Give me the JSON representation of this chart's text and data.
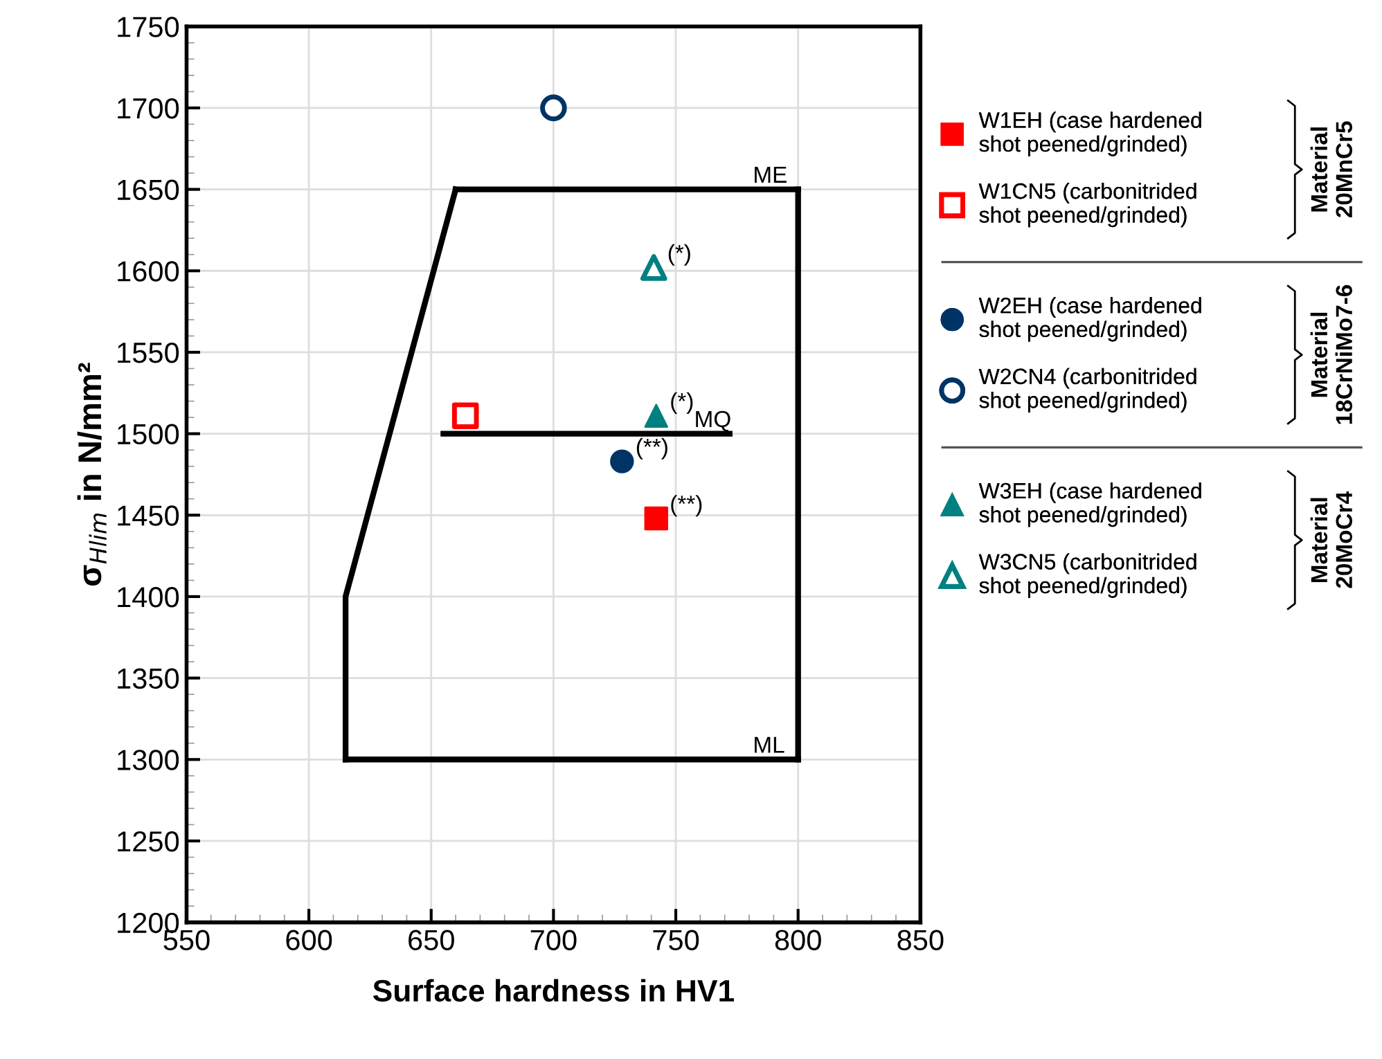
{
  "chart_data": {
    "type": "scatter",
    "xlabel": "Surface hardness in HV1",
    "ylabel": "σ$_{Hlim}$ in N/mm²",
    "xlim": [
      550,
      850
    ],
    "xticks": [
      550,
      600,
      650,
      700,
      750,
      800,
      850
    ],
    "ylim": [
      1200,
      1750
    ],
    "yticks": [
      1200,
      1250,
      1300,
      1350,
      1400,
      1450,
      1500,
      1550,
      1600,
      1650,
      1700,
      1750
    ],
    "grid": true,
    "legend": "right",
    "series": [
      {
        "name": "W1EH (case hardened\nshot peened/grinded)",
        "color": "#ff0000",
        "marker": "square",
        "x": [
          742
        ],
        "values": [
          1448
        ]
      },
      {
        "name": "W1CN5 (carbonitrided\nshot peened/grinded)",
        "color": "#ff0000",
        "marker": "square",
        "colors": [
          "#ffffff"
        ],
        "x": [
          664
        ],
        "values": [
          1511
        ]
      },
      {
        "name": "W2EH (case hardened\nshot peened/grinded)",
        "color": "#003366",
        "marker": "circle",
        "x": [
          728
        ],
        "values": [
          1483
        ]
      },
      {
        "name": "W2CN4 (carbonitrided\nshot peened/grinded)",
        "color": "#003366",
        "marker": "circle",
        "colors": [
          "#ffffff"
        ],
        "x": [
          700
        ],
        "values": [
          1700
        ]
      },
      {
        "name": "W3EH (case hardened\nshot peened/grinded)",
        "color": "#008080",
        "marker": "triangle",
        "x": [
          742
        ],
        "values": [
          1511
        ]
      },
      {
        "name": "W3CN5 (carbonitrided\nshot peened/grinded)",
        "color": "#008080",
        "marker": "triangle",
        "colors": [
          "#ffffff"
        ],
        "x": [
          741
        ],
        "values": [
          1602
        ]
      },
      {
        "type": "line",
        "color": "#000000",
        "marker": "none",
        "x": [
          660,
          800
        ],
        "values": [
          1650,
          1650
        ]
      },
      {
        "type": "line",
        "color": "#000000",
        "marker": "none",
        "x": [
          800,
          800
        ],
        "values": [
          1650,
          1300
        ]
      },
      {
        "type": "line",
        "color": "#000000",
        "marker": "none",
        "x": [
          615,
          800
        ],
        "values": [
          1300,
          1300
        ]
      },
      {
        "type": "line",
        "color": "#000000",
        "marker": "none",
        "x": [
          615,
          615,
          660
        ],
        "values": [
          1300,
          1400,
          1650
        ]
      },
      {
        "type": "line",
        "color": "#000000",
        "marker": "none",
        "x": [
          655,
          772
        ],
        "values": [
          1500,
          1500
        ]
      }
    ],
    "annotations": [
      {
        "text": "(*)",
        "x": 741,
        "y": 1602
      },
      {
        "text": "(*)",
        "x": 742,
        "y": 1511
      },
      {
        "text": "(**)",
        "x": 728,
        "y": 1483
      },
      {
        "text": "(**)",
        "x": 742,
        "y": 1448
      },
      {
        "text": "ME",
        "x": 776,
        "y": 1650
      },
      {
        "text": "MQ",
        "x": 752,
        "y": 1500
      },
      {
        "text": "ML",
        "x": 776,
        "y": 1300
      },
      "Material\n20MnCr5",
      "Material\n18CrNiMo7-6",
      "Material\n20MoCr4"
    ]
  }
}
